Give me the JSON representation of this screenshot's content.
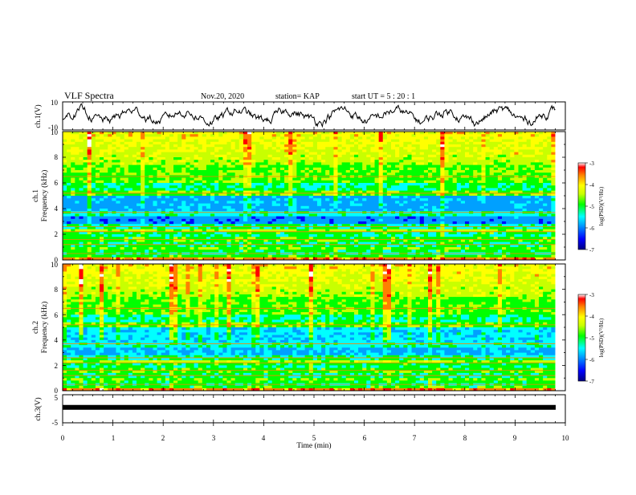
{
  "header": {
    "title": "VLF Spectra",
    "date": "Nov.20, 2020",
    "station": "station= KAP",
    "start_ut": "start  UT =   5  : 20 : 1"
  },
  "chart_data": [
    {
      "type": "line",
      "panel": "ch1-waveform",
      "ylabel": "ch.1(V)",
      "ytick_labels": [
        "10",
        "-10"
      ],
      "ylim": [
        -10,
        10
      ],
      "xlim": [
        0,
        10
      ],
      "series": [
        {
          "color": "#000000",
          "x_end": 9.8
        }
      ]
    },
    {
      "type": "heatmap",
      "panel": "ch1-spectrogram",
      "ylabel": [
        "ch.1",
        "Frequency (kHz)"
      ],
      "ytick_labels": [
        "0",
        "2",
        "4",
        "6",
        "8",
        "10"
      ],
      "ylim": [
        0,
        10
      ],
      "xlim": [
        0,
        10
      ],
      "data_x_end": 9.8,
      "colorbar": {
        "label": "log(PSD)(V²/Hz)",
        "ticks": [
          "-3",
          "-4",
          "-5",
          "-6",
          "-7"
        ],
        "range": [
          -7,
          -3
        ]
      }
    },
    {
      "type": "heatmap",
      "panel": "ch2-spectrogram",
      "ylabel": [
        "ch.2",
        "Frequency (kHz)"
      ],
      "ytick_labels": [
        "0",
        "2",
        "4",
        "6",
        "8",
        "10"
      ],
      "ylim": [
        0,
        10
      ],
      "xlim": [
        0,
        10
      ],
      "data_x_end": 9.8,
      "colorbar": {
        "label": "log(PSD)(V²/Hz)",
        "ticks": [
          "-3",
          "-4",
          "-5",
          "-6",
          "-7"
        ],
        "range": [
          -7,
          -3
        ]
      }
    },
    {
      "type": "line",
      "panel": "ch3-waveform",
      "ylabel": "ch.3(V)",
      "ytick_labels": [
        "5",
        "-5"
      ],
      "ylim": [
        -5,
        5
      ],
      "xlim": [
        0,
        10
      ],
      "series": [
        {
          "color": "#000000",
          "x_end": 9.8
        }
      ]
    }
  ],
  "x_axis": {
    "label": "Time (min)",
    "tick_labels": [
      "0",
      "1",
      "2",
      "3",
      "4",
      "5",
      "6",
      "7",
      "8",
      "9",
      "10"
    ]
  },
  "colors": {
    "colormap": [
      "#000080",
      "#0000ff",
      "#00a0ff",
      "#00ffff",
      "#00ff00",
      "#c8ff00",
      "#ffff00",
      "#ff8000",
      "#ff0000",
      "#ffffff"
    ]
  }
}
